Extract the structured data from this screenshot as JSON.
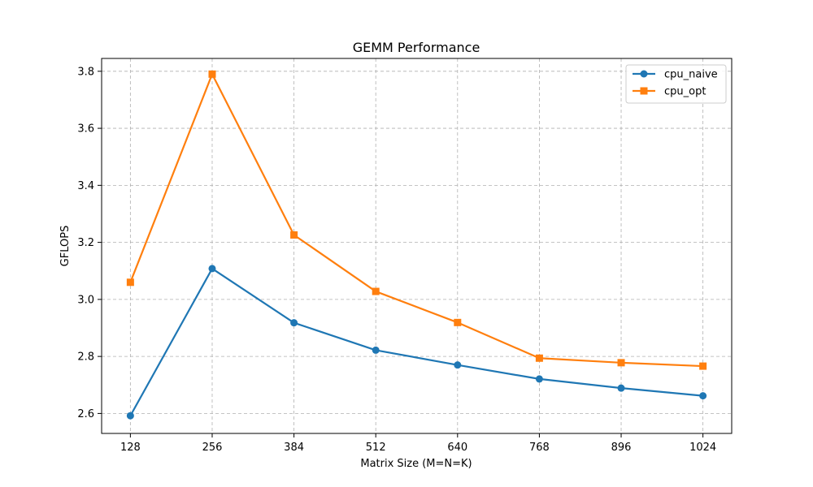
{
  "chart_data": {
    "type": "line",
    "title": "GEMM Performance",
    "xlabel": "Matrix Size (M=N=K)",
    "ylabel": "GFLOPS",
    "x": [
      128,
      256,
      384,
      512,
      640,
      768,
      896,
      1024
    ],
    "x_tick_labels": [
      "128",
      "256",
      "384",
      "512",
      "640",
      "768",
      "896",
      "1024"
    ],
    "y_ticks": [
      2.6,
      2.8,
      3.0,
      3.2,
      3.4,
      3.6,
      3.8
    ],
    "y_tick_labels": [
      "2.6",
      "2.8",
      "3.0",
      "3.2",
      "3.4",
      "3.6",
      "3.8"
    ],
    "xlim": [
      83,
      1069
    ],
    "ylim": [
      2.53,
      3.845
    ],
    "grid": true,
    "legend_position": "top-right",
    "series": [
      {
        "name": "cpu_naive",
        "color": "#1f77b4",
        "marker": "circle",
        "values": [
          2.592,
          3.108,
          2.918,
          2.822,
          2.77,
          2.721,
          2.689,
          2.662
        ]
      },
      {
        "name": "cpu_opt",
        "color": "#ff7f0e",
        "marker": "square",
        "values": [
          3.06,
          3.79,
          3.226,
          3.028,
          2.919,
          2.794,
          2.778,
          2.766
        ]
      }
    ]
  }
}
